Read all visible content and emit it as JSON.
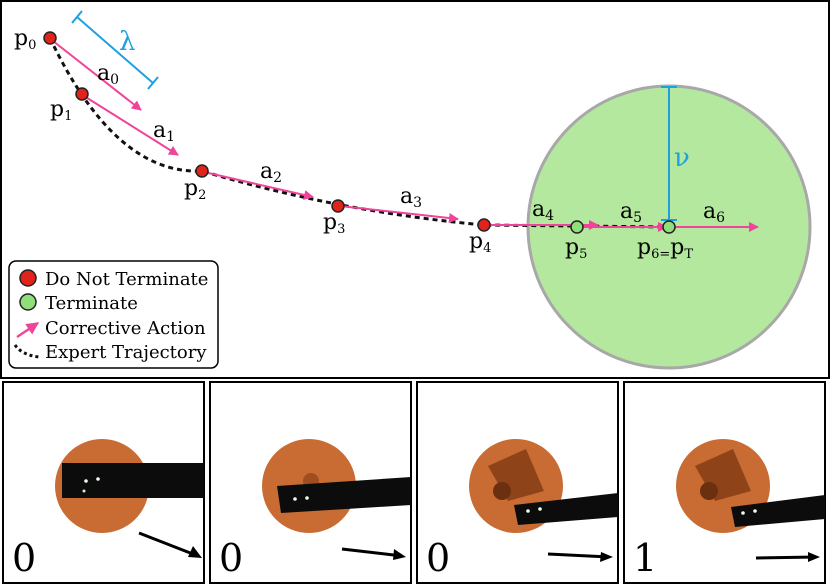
{
  "diagram": {
    "lambda_label": "λ",
    "nu_label": "ν",
    "points": [
      {
        "main": "p",
        "sub": "0",
        "terminate": false
      },
      {
        "main": "p",
        "sub": "1",
        "terminate": false
      },
      {
        "main": "p",
        "sub": "2",
        "terminate": false
      },
      {
        "main": "p",
        "sub": "3",
        "terminate": false
      },
      {
        "main": "p",
        "sub": "4",
        "terminate": false
      },
      {
        "main": "p",
        "sub": "5",
        "terminate": true
      },
      {
        "main": "p",
        "sub": "6=",
        "main2": "p",
        "sub2": "T",
        "terminate": true
      }
    ],
    "actions": [
      {
        "main": "a",
        "sub": "0"
      },
      {
        "main": "a",
        "sub": "1"
      },
      {
        "main": "a",
        "sub": "2"
      },
      {
        "main": "a",
        "sub": "3"
      },
      {
        "main": "a",
        "sub": "4"
      },
      {
        "main": "a",
        "sub": "5"
      },
      {
        "main": "a",
        "sub": "6"
      }
    ],
    "legend": {
      "do_not_terminate": "Do Not Terminate",
      "terminate": "Terminate",
      "corrective_action": "Corrective Action",
      "expert_trajectory": "Expert Trajectory"
    },
    "colors": {
      "do_not_terminate": "#e0241c",
      "terminate": "#8fe07a",
      "action": "#f0449a",
      "measure": "#1ea0e0",
      "region_fill": "#b4e89e",
      "region_stroke": "#a8a8a8"
    }
  },
  "images": [
    {
      "label": "0"
    },
    {
      "label": "0"
    },
    {
      "label": "0"
    },
    {
      "label": "1"
    }
  ]
}
